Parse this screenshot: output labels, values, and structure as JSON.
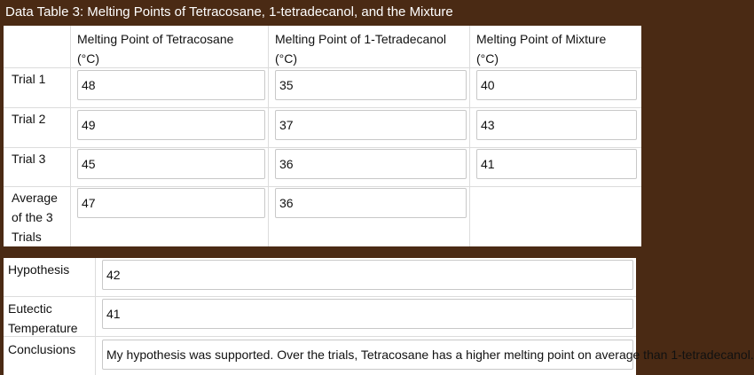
{
  "title": "Data Table 3: Melting Points of Tetracosane, 1-tetradecanol, and the Mixture",
  "table": {
    "columns": [
      "Melting Point of Tetracosane (°C)",
      "Melting Point of 1-Tetradecanol (°C)",
      "Melting Point of Mixture (°C)"
    ],
    "column_lines": [
      [
        "Melting Point of Tetracosane",
        "(°C)"
      ],
      [
        "Melting Point of 1-Tetradecanol",
        "(°C)"
      ],
      [
        "Melting Point of Mixture",
        "(°C)"
      ]
    ],
    "rows": [
      {
        "label": "Trial 1",
        "values": [
          "48",
          "35",
          "40"
        ]
      },
      {
        "label": "Trial 2",
        "values": [
          "49",
          "37",
          "43"
        ]
      },
      {
        "label": "Trial 3",
        "values": [
          "45",
          "36",
          "41"
        ]
      },
      {
        "label_lines": [
          "Average",
          "of the 3",
          "Trials"
        ],
        "values": [
          "47",
          "36"
        ]
      }
    ]
  },
  "results": {
    "hypothesis_label": "Hypothesis",
    "hypothesis_value": "42",
    "eutectic_label_lines": [
      "Eutectic",
      "Temperature"
    ],
    "eutectic_value": "41",
    "conclusions_label": "Conclusions",
    "conclusions_value": "My hypothesis was supported. Over the trials, Tetracosane has a higher melting point on average than 1-tetradecanol."
  }
}
